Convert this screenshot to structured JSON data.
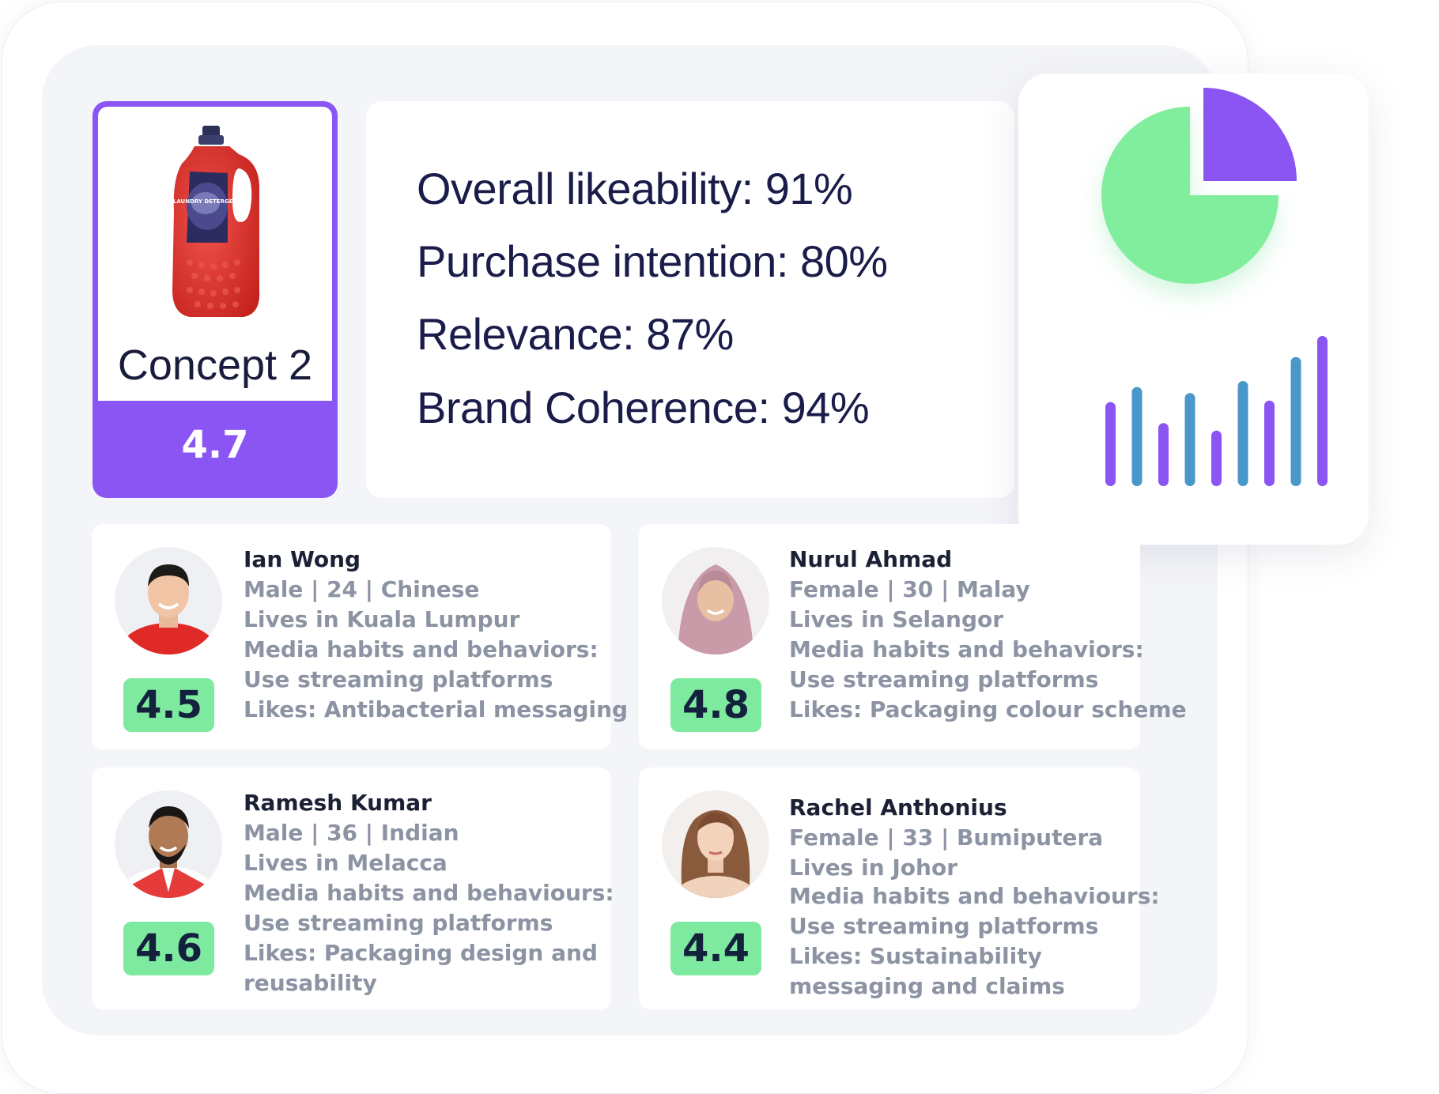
{
  "concept": {
    "title": "Concept 2",
    "score": "4.7",
    "product_label": "LAUNDRY DETERGENT"
  },
  "metrics": [
    {
      "text": "Overall likeability: 91%"
    },
    {
      "text": "Purchase intention: 80%"
    },
    {
      "text": "Relevance: 87%"
    },
    {
      "text": "Brand Coherence: 94%"
    }
  ],
  "personas": [
    {
      "name": "Ian Wong",
      "score": "4.5",
      "lines": [
        "Male | 24 | Chinese",
        "Lives in Kuala Lumpur",
        "Media habits and behaviors:",
        "Use streaming platforms",
        "Likes: Antibacterial messaging"
      ]
    },
    {
      "name": "Nurul Ahmad",
      "score": "4.8",
      "lines": [
        "Female | 30 | Malay",
        "Lives in Selangor",
        "Media habits and behaviors:",
        "Use streaming platforms",
        "Likes: Packaging colour scheme"
      ]
    },
    {
      "name": "Ramesh Kumar",
      "score": "4.6",
      "lines": [
        "Male | 36 | Indian",
        "Lives in Melacca",
        "Media habits and behaviours:",
        "Use streaming platforms",
        "Likes: Packaging design and",
        "reusability"
      ]
    },
    {
      "name": "Rachel Anthonius",
      "score": "4.4",
      "lines": [
        "Female | 33 | Bumiputera",
        "Lives in Johor",
        "Media habits and behaviours:",
        "Use streaming platforms",
        "Likes: Sustainability",
        "messaging and claims"
      ]
    }
  ],
  "colors": {
    "accent_purple": "#8b55f3",
    "score_green": "#7eeaa0",
    "pie_green": "#80ee9c",
    "bar_blue": "#4a97c9"
  },
  "chart_data": {
    "type": "bar",
    "pie": {
      "values": [
        75,
        25
      ]
    },
    "bars": {
      "values": [
        0.56,
        0.66,
        0.42,
        0.62,
        0.37,
        0.7,
        0.57,
        0.86,
        1.0
      ]
    }
  }
}
